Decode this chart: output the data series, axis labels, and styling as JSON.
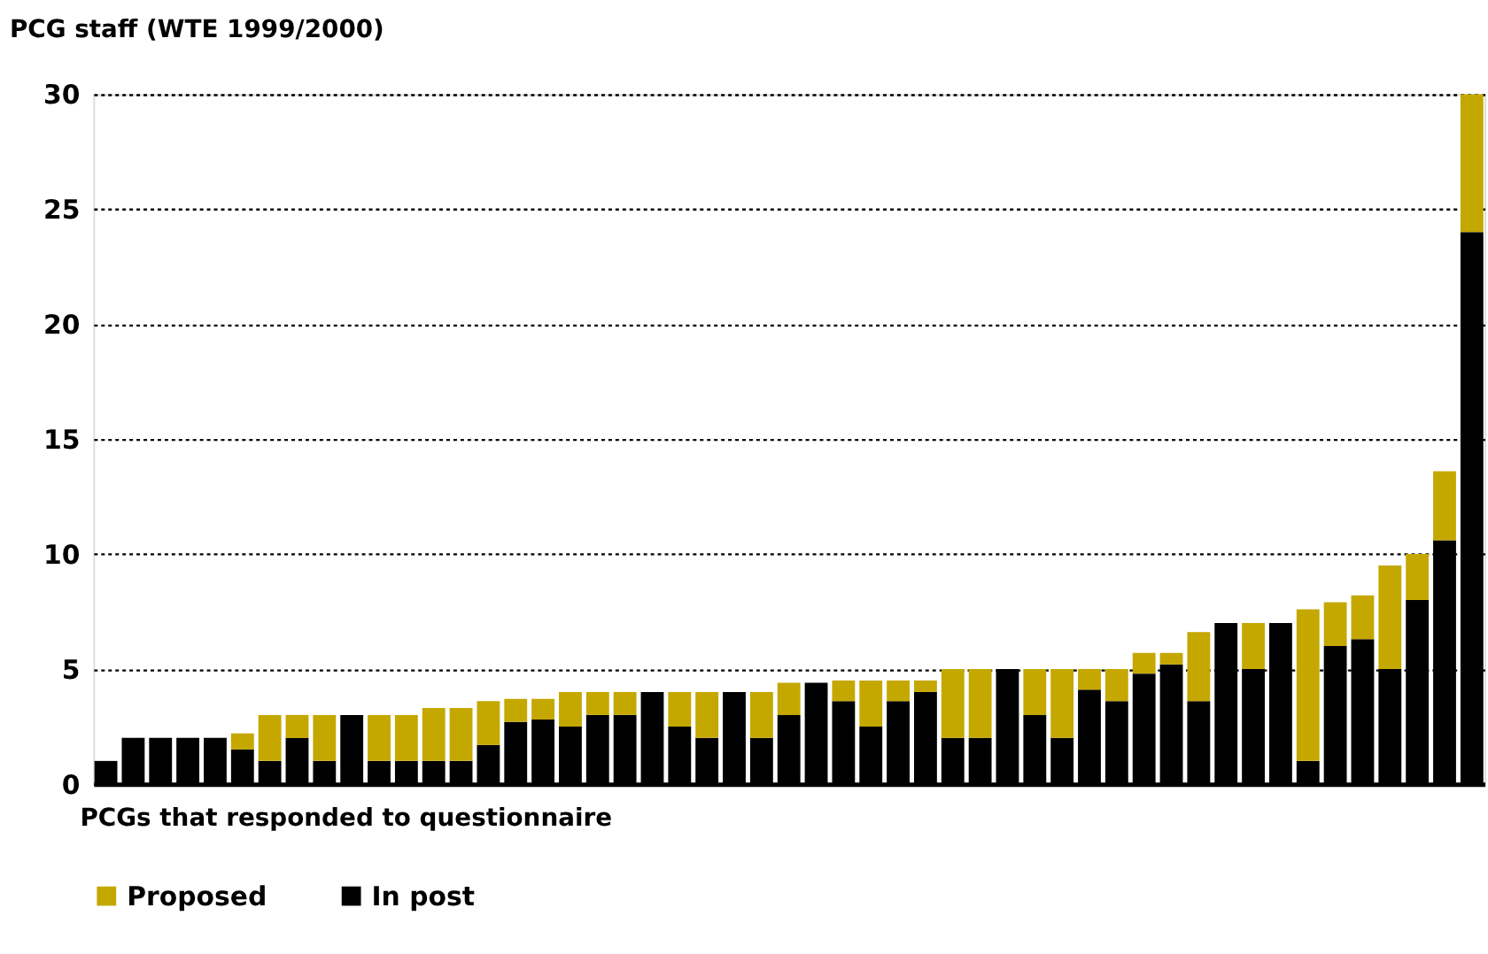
{
  "chart_data": {
    "type": "bar",
    "stacked": true,
    "ylabel": "PCG staff (WTE 1999/2000)",
    "xlabel": "PCGs that responded to questionnaire",
    "categories": [
      null,
      null,
      null,
      null,
      null,
      null,
      null,
      null,
      null,
      null,
      null,
      null,
      null,
      null,
      null,
      null,
      null,
      null,
      null,
      null,
      null,
      null,
      null,
      null,
      null,
      null,
      null,
      null,
      null,
      null,
      null,
      null,
      null,
      null,
      null,
      null,
      null,
      null,
      null,
      null,
      null,
      null,
      null,
      null,
      null,
      null,
      null,
      null,
      null,
      null,
      null
    ],
    "series": [
      {
        "name": "In post",
        "color": "#000000",
        "values": [
          1,
          2,
          2,
          2,
          2,
          1.5,
          1,
          2,
          1,
          3,
          1,
          1,
          1,
          1,
          1.7,
          2.7,
          2.8,
          2.5,
          3,
          3,
          4,
          2.5,
          2,
          4,
          2,
          3,
          4.4,
          3.6,
          2.5,
          3.6,
          4,
          2,
          2,
          5,
          3,
          2,
          4.1,
          3.6,
          4.8,
          5.2,
          3.6,
          7,
          5,
          7,
          1,
          6,
          6.3,
          5,
          8,
          10.6,
          24
        ]
      },
      {
        "name": "Proposed",
        "color": "#c4a800",
        "values": [
          0,
          0,
          0,
          0,
          0,
          0.7,
          2,
          1,
          2,
          0,
          2,
          2,
          2.3,
          2.3,
          1.9,
          1,
          0.9,
          1.5,
          1,
          1,
          0,
          1.5,
          2,
          0,
          2,
          1.4,
          0,
          0.9,
          2,
          0.9,
          0.5,
          3,
          3,
          0,
          2,
          3,
          0.9,
          1.4,
          0.9,
          0.5,
          3,
          0,
          2,
          0,
          6.6,
          1.9,
          1.9,
          4.5,
          2,
          3,
          6
        ]
      }
    ],
    "ylim": [
      0,
      30
    ],
    "yticks": [
      0,
      5,
      10,
      15,
      20,
      25,
      30
    ],
    "grid": "y",
    "legend": "bottom",
    "tick_labels": "y"
  }
}
